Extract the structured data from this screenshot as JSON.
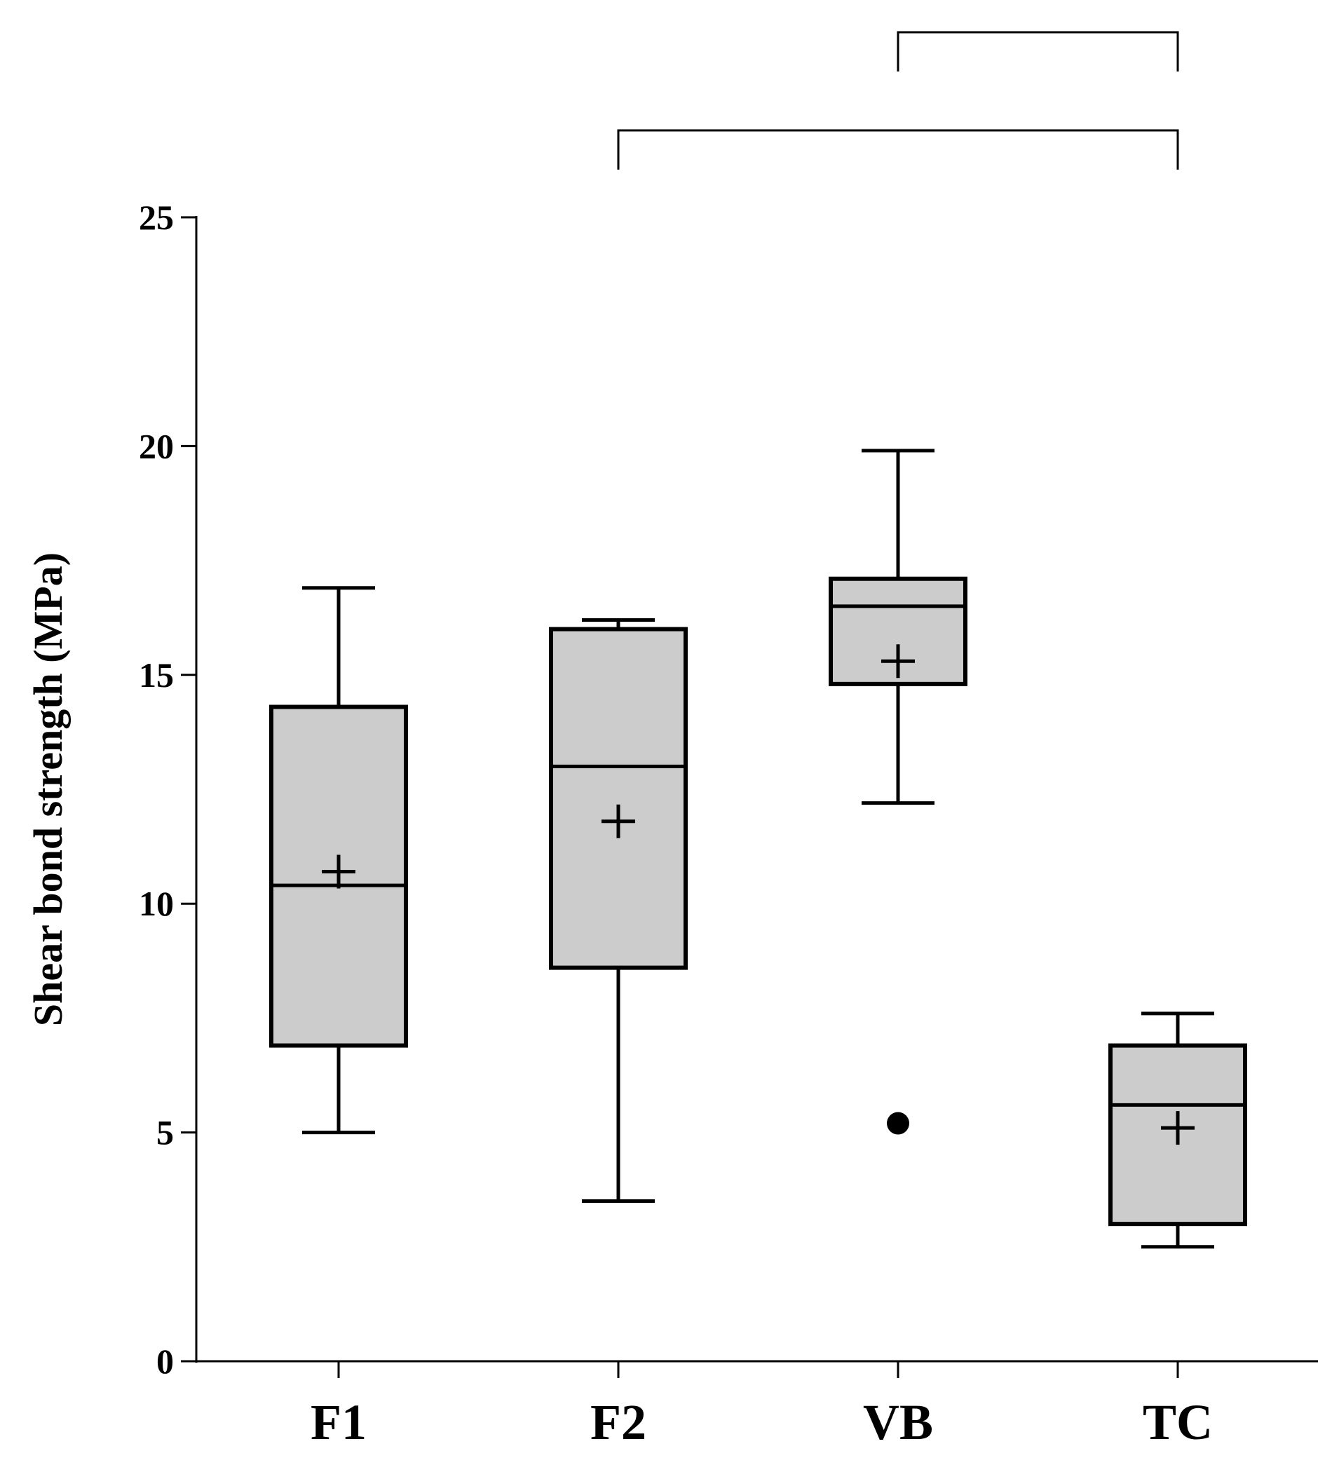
{
  "chart_data": {
    "type": "box",
    "title": "",
    "xlabel": "",
    "ylabel": "Shear bond strength (MPa)",
    "ylim": [
      0,
      25
    ],
    "yticks": [
      "0",
      "5",
      "10",
      "15",
      "20",
      "25"
    ],
    "categories": [
      "F1",
      "F2",
      "VB",
      "TC"
    ],
    "boxes": [
      {
        "name": "F1",
        "whisker_low": 5.0,
        "q1": 6.9,
        "median": 10.4,
        "q3": 14.3,
        "whisker_high": 16.9,
        "mean": 10.7,
        "outliers": []
      },
      {
        "name": "F2",
        "whisker_low": 3.5,
        "q1": 8.6,
        "median": 13.0,
        "q3": 16.0,
        "whisker_high": 16.2,
        "mean": 11.8,
        "outliers": []
      },
      {
        "name": "VB",
        "whisker_low": 12.2,
        "q1": 14.8,
        "median": 16.5,
        "q3": 17.1,
        "whisker_high": 19.9,
        "mean": 15.3,
        "outliers": [
          5.2
        ]
      },
      {
        "name": "TC",
        "whisker_low": 2.5,
        "q1": 3.0,
        "median": 5.6,
        "q3": 6.9,
        "whisker_high": 7.6,
        "mean": 5.1,
        "outliers": []
      }
    ],
    "significance_brackets": [
      {
        "from": "VB",
        "to": "TC",
        "level": 2
      },
      {
        "from": "F2",
        "to": "TC",
        "level": 1
      }
    ],
    "box_fill": "#cccccc",
    "line_color": "#000000"
  }
}
